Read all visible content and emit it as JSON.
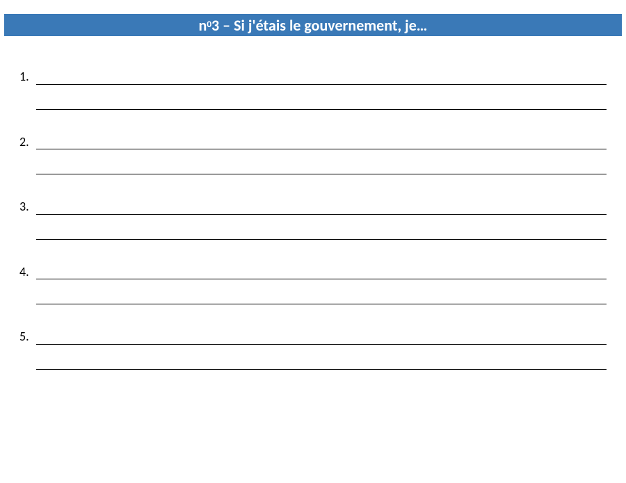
{
  "banner": {
    "prefix": "n",
    "sup": "0",
    "rest": "3 – Si j'étais le gouvernement, je…",
    "background_color": "#3a79b7",
    "text_color": "#ffffff"
  },
  "items": [
    {
      "number": "1."
    },
    {
      "number": "2."
    },
    {
      "number": "3."
    },
    {
      "number": "4."
    },
    {
      "number": "5."
    }
  ],
  "blank_lines_per_item": 2
}
